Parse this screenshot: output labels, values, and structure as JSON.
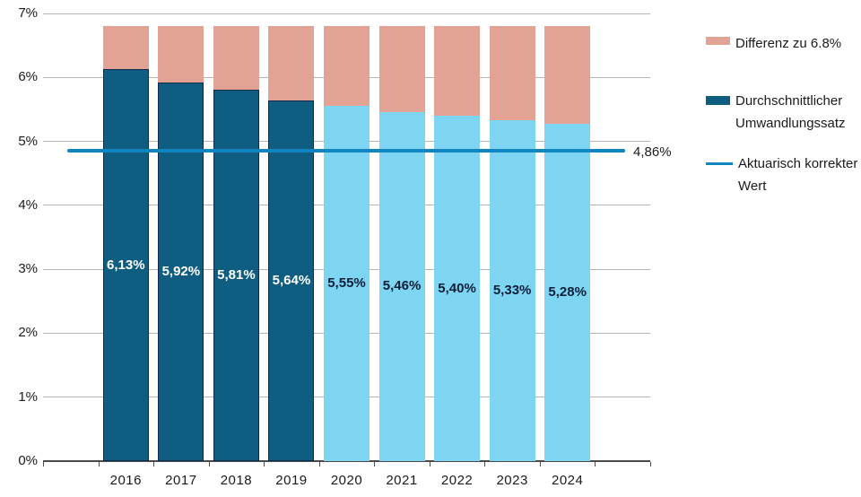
{
  "chart_data": {
    "type": "bar",
    "stacked": true,
    "categories": [
      "2016",
      "2017",
      "2018",
      "2019",
      "2020",
      "2021",
      "2022",
      "2023",
      "2024"
    ],
    "series": [
      {
        "name": "Durchschnittlicher Umwandlungssatz",
        "values": [
          6.13,
          5.92,
          5.81,
          5.64,
          5.55,
          5.46,
          5.4,
          5.33,
          5.28
        ]
      },
      {
        "name": "Differenz zu 6.8%",
        "values": [
          0.67,
          0.88,
          0.99,
          1.16,
          1.25,
          1.34,
          1.4,
          1.47,
          1.52
        ]
      }
    ],
    "bar_value_labels": [
      "6,13%",
      "5,92%",
      "5,81%",
      "5,64%",
      "5,55%",
      "5,46%",
      "5,40%",
      "5,33%",
      "5,28%"
    ],
    "bar_variants": [
      "dark",
      "dark",
      "dark",
      "dark",
      "light",
      "light",
      "light",
      "light",
      "light"
    ],
    "stack_total": 6.8,
    "reference_line": {
      "value": 4.86,
      "label": "4,86%",
      "name": "Aktuarisch korrekter Wert"
    },
    "ylim": [
      0,
      7
    ],
    "y_tick_labels": [
      "0%",
      "1%",
      "2%",
      "3%",
      "4%",
      "5%",
      "6%",
      "7%"
    ],
    "grid": true,
    "legend_position": "right"
  },
  "legend": {
    "items": [
      {
        "label": "Differenz zu 6.8%",
        "swatch": "pink-box"
      },
      {
        "label": "Durchschnittlicher Umwandlungssatz",
        "swatch": "dark-blue-box"
      },
      {
        "label": "Aktuarisch korrekter Wert",
        "swatch": "blue-line"
      }
    ]
  },
  "colors": {
    "dark_bar": "#0f5e82",
    "dark_bar_border": "#0e2a4a",
    "light_bar": "#7dd5f2",
    "diff_segment": "#e2a294",
    "reference_line": "#1185c0",
    "gridline": "#b5b5b5",
    "axis": "#4a4a4a",
    "text": "#1a1a1a",
    "label_on_dark": "#ffffff",
    "label_on_light": "#0e1e38"
  }
}
